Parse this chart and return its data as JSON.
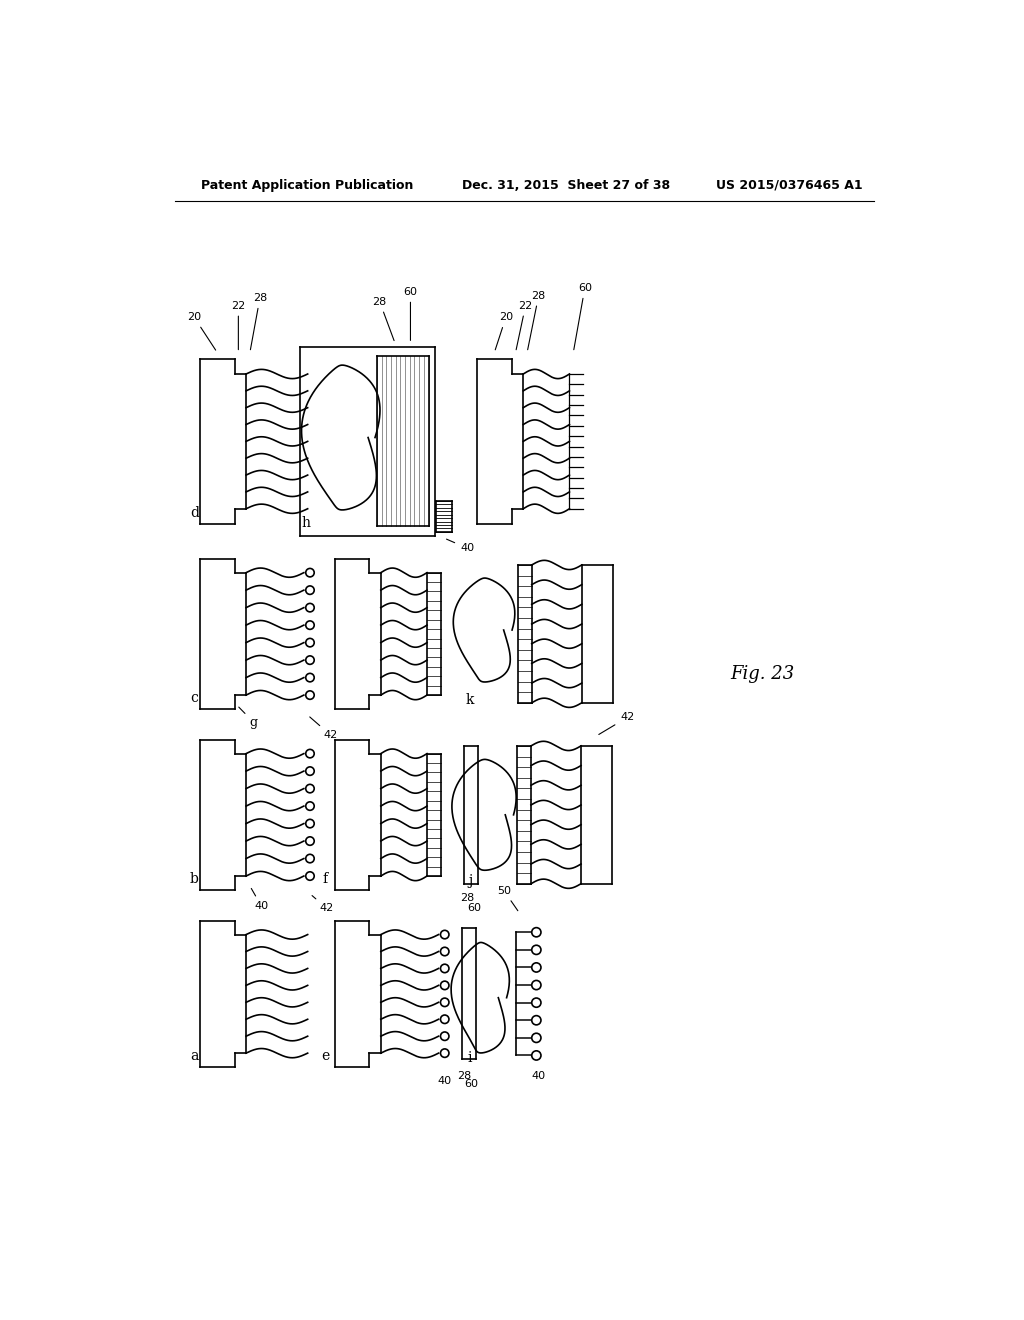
{
  "title_left": "Patent Application Publication",
  "title_center": "Dec. 31, 2015  Sheet 27 of 38",
  "title_right": "US 2015/0376465 A1",
  "fig_label": "Fig. 23",
  "background": "#ffffff",
  "line_color": "#000000",
  "lw": 1.2,
  "amp": 6
}
